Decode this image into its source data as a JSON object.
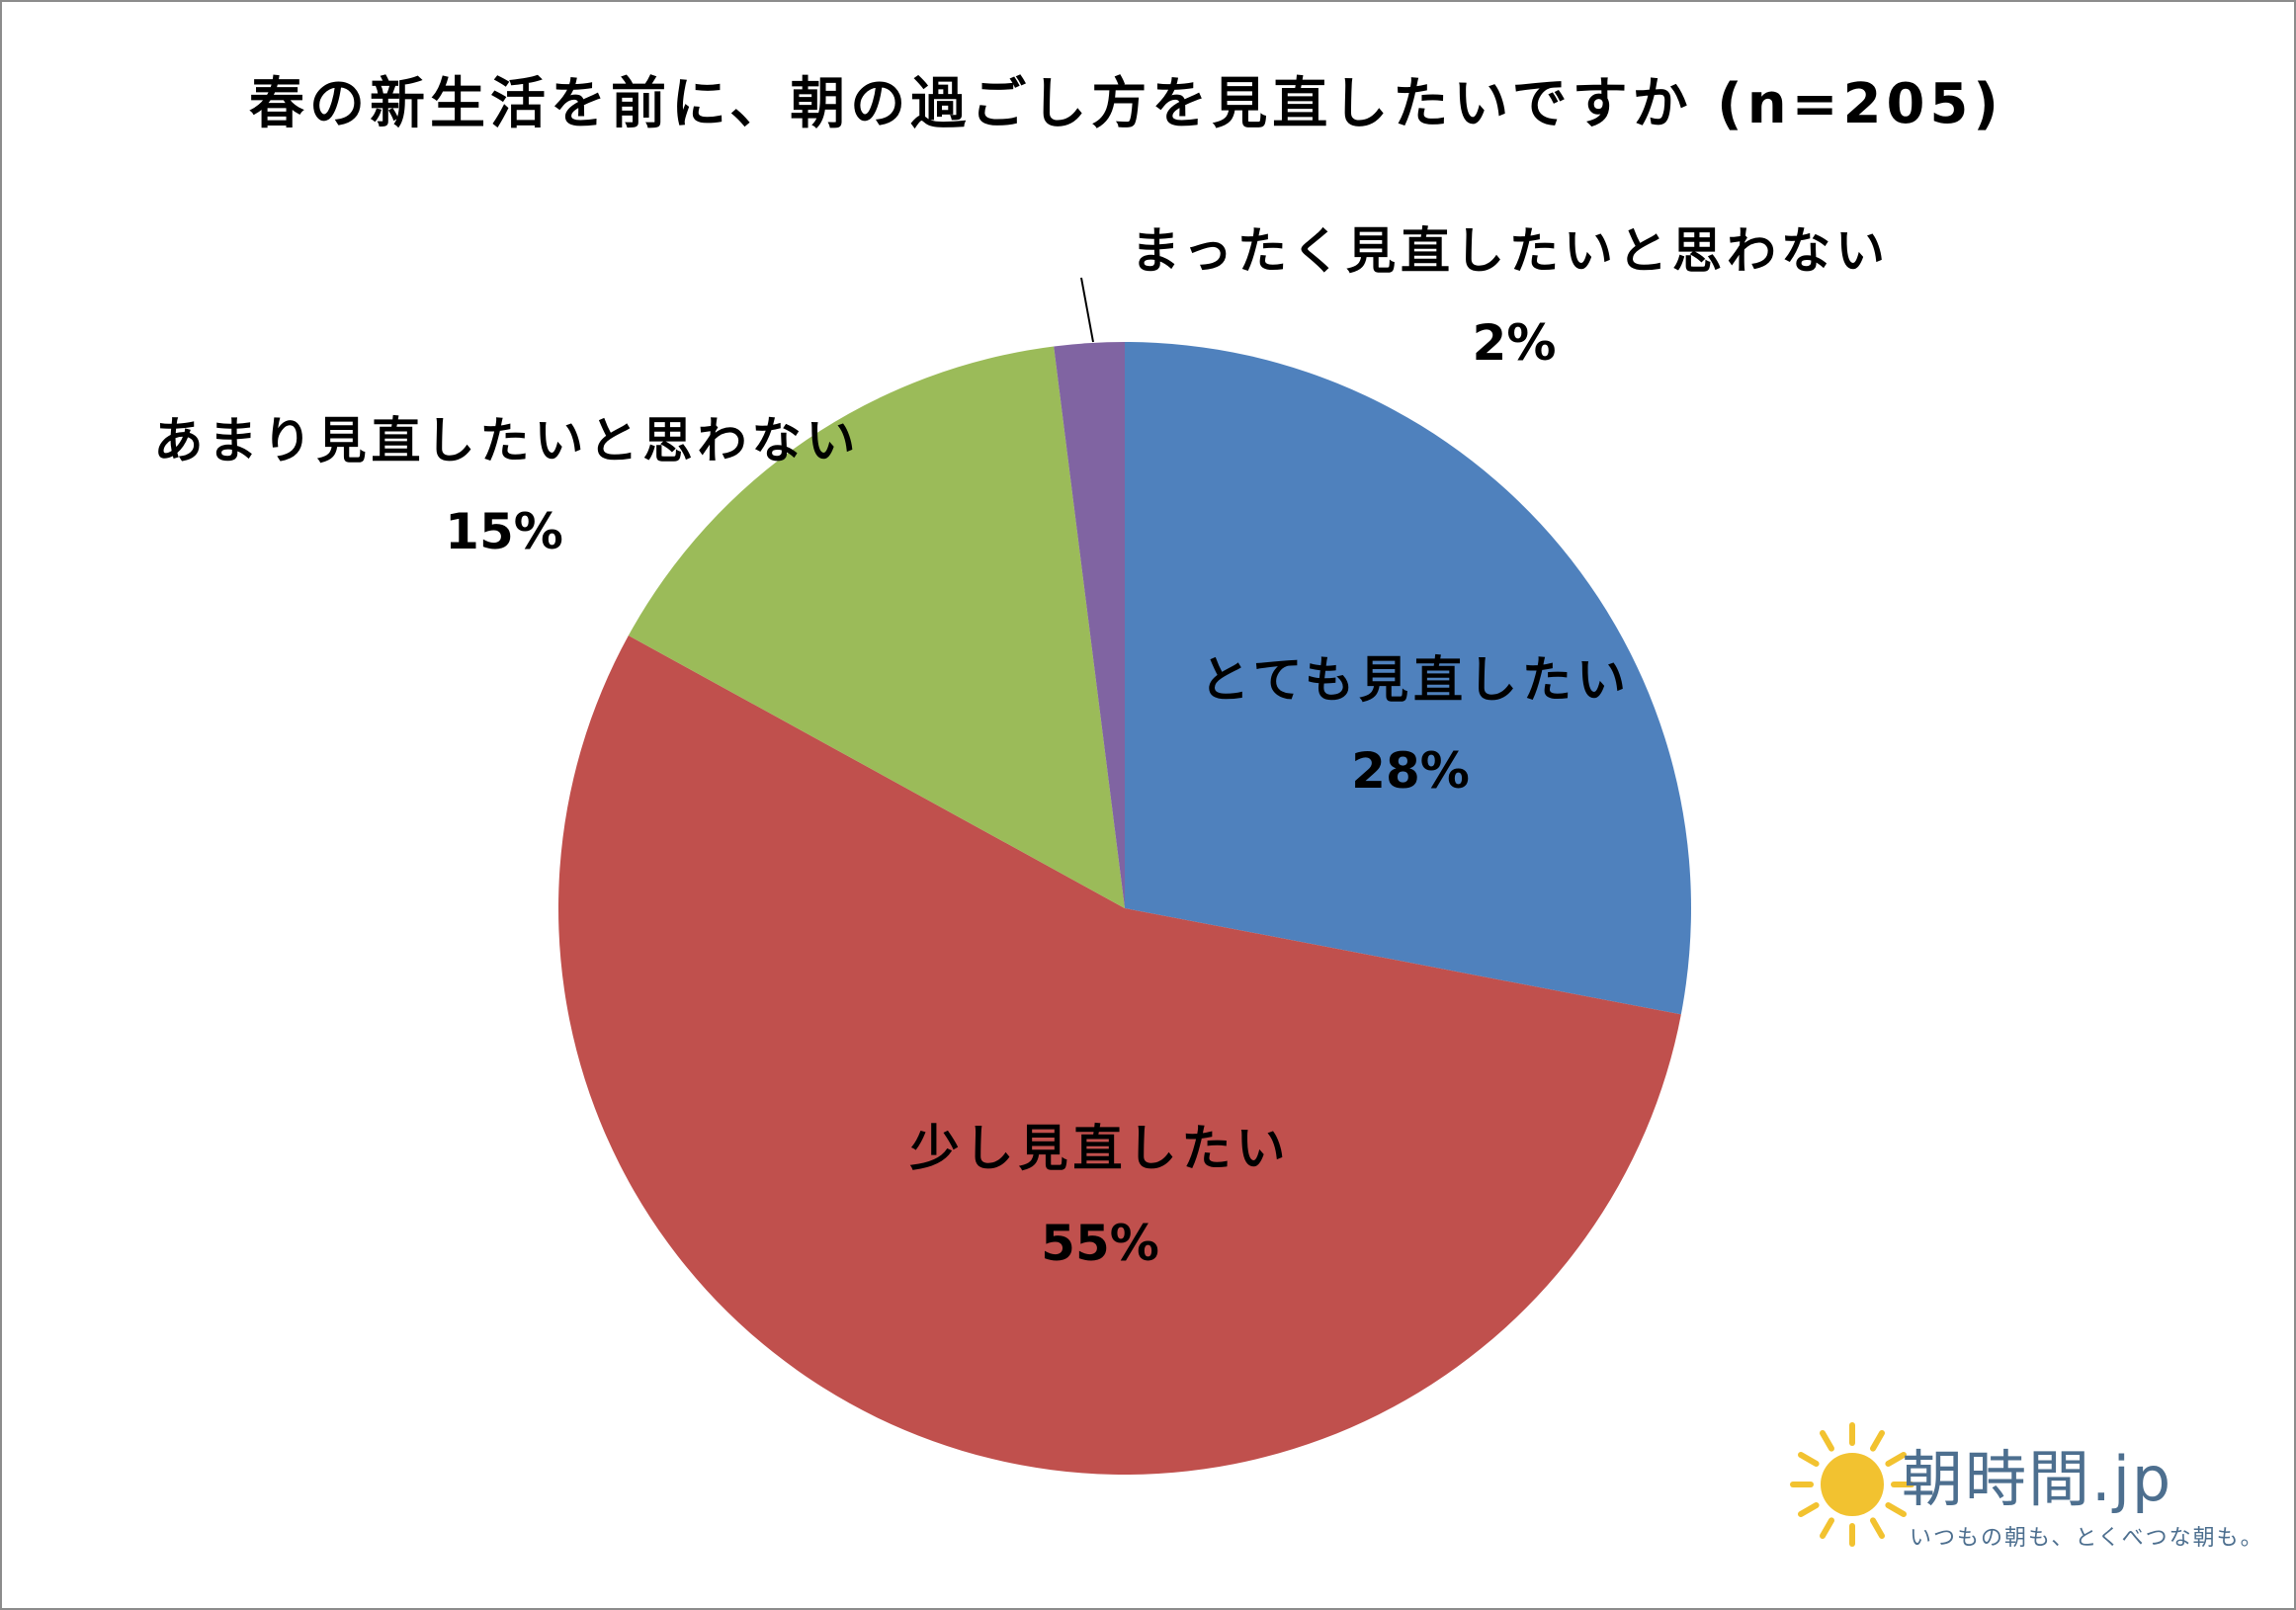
{
  "chart_data": {
    "type": "pie",
    "title": "春の新生活を前に、朝の過ごし方を見直したいですか (n=205)",
    "categories": [
      "とても見直したい",
      "少し見直したい",
      "あまり見直したいと思わない",
      "まったく見直したいと思わない"
    ],
    "values": [
      28,
      55,
      15,
      2
    ],
    "value_labels": [
      "28%",
      "55%",
      "15%",
      "2%"
    ],
    "colors": [
      "#4F81BD",
      "#C0504D",
      "#9BBB59",
      "#8064A2"
    ],
    "direction": "clockwise",
    "legend": "none"
  },
  "logo": {
    "name": "朝時間.jp",
    "tagline": "いつもの朝も、とくべつな朝も。",
    "icon": "sun-icon",
    "sun_color": "#F2C230",
    "text_color": "#4D6F8F"
  }
}
